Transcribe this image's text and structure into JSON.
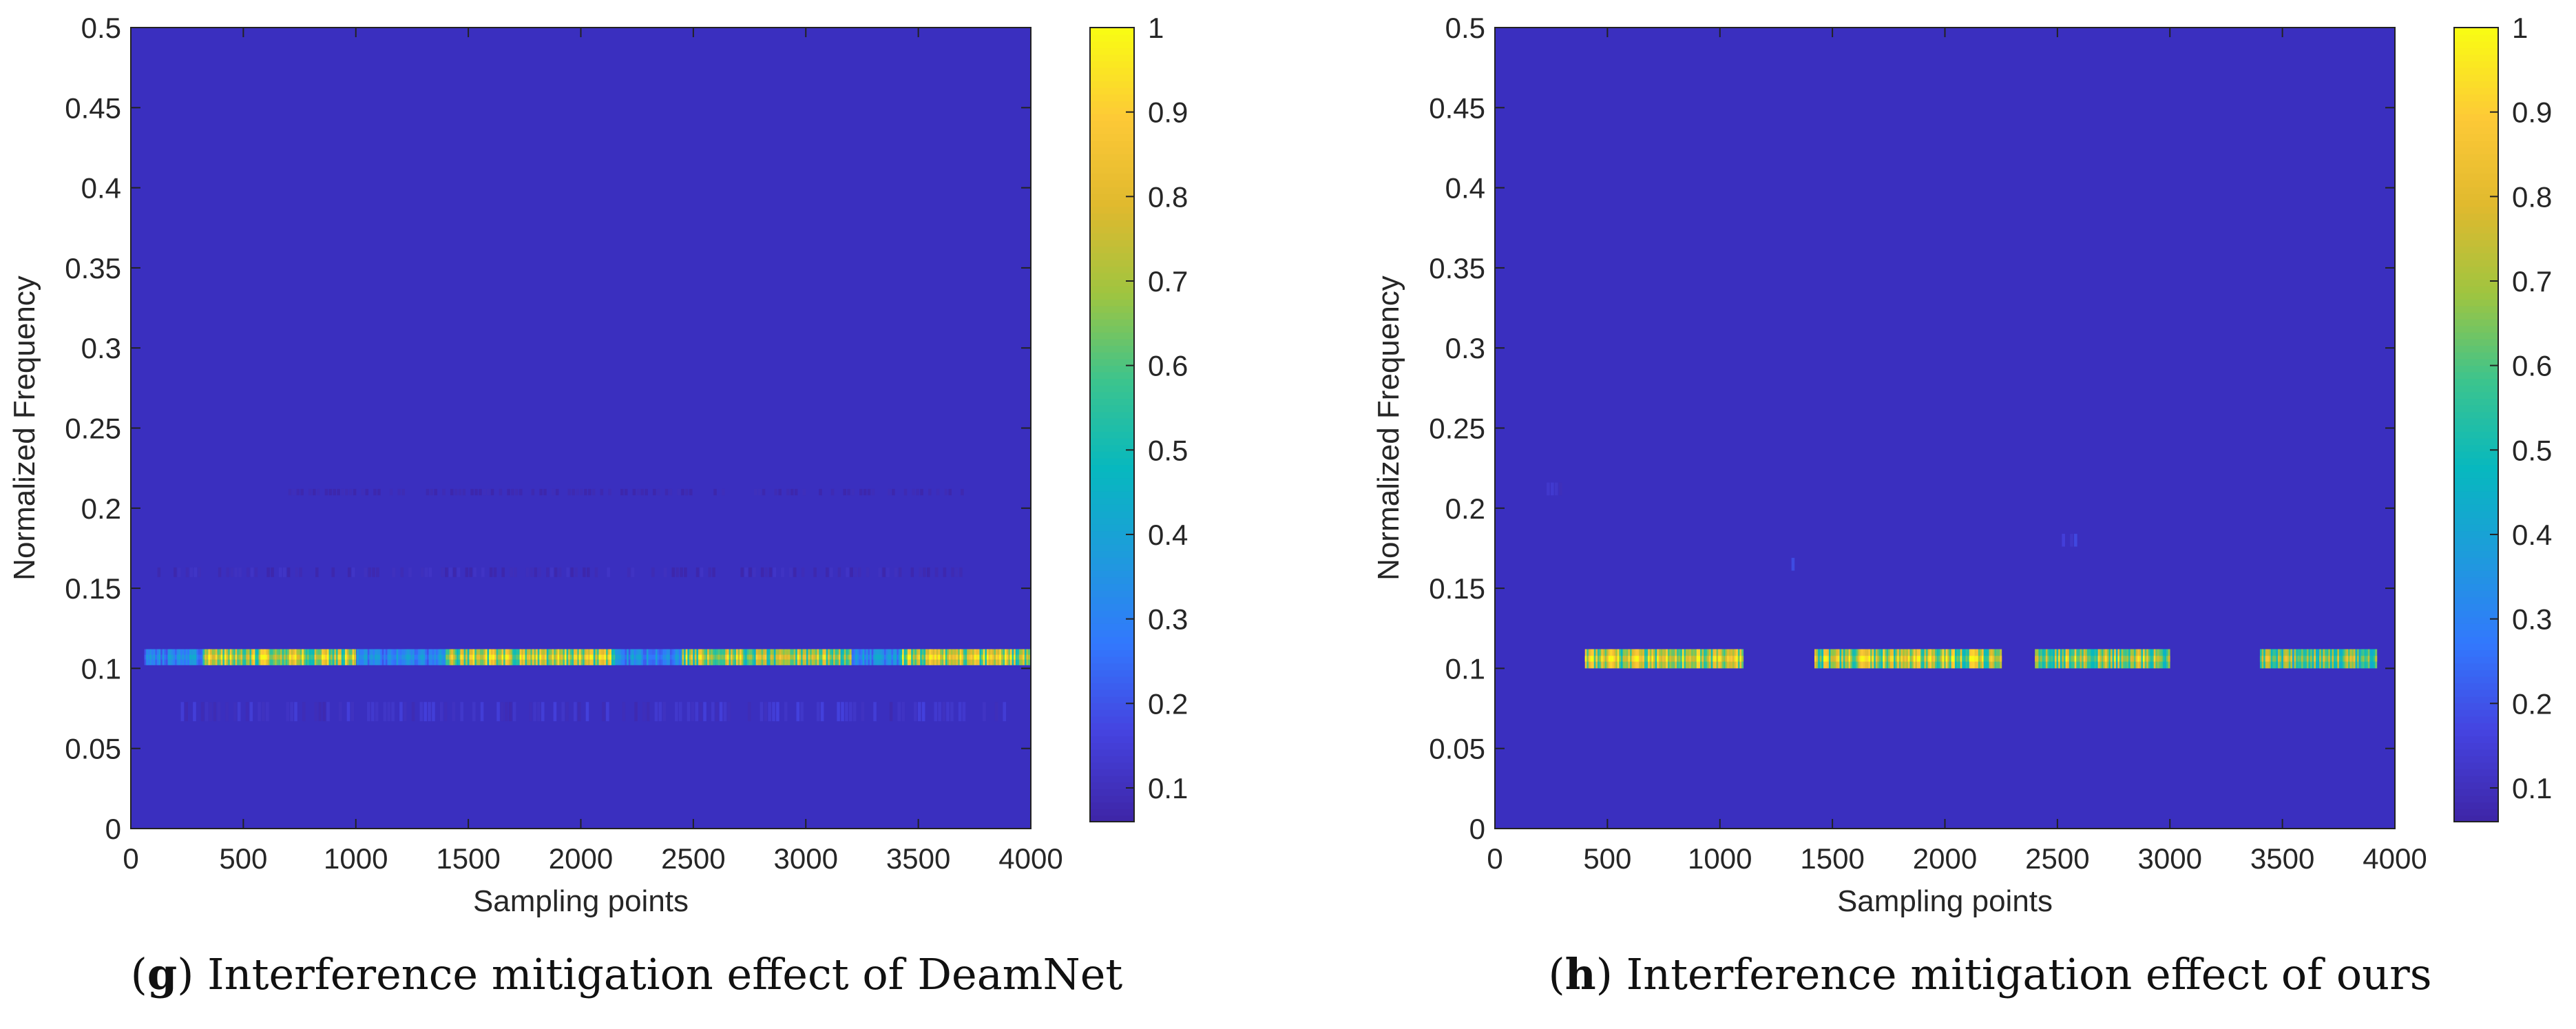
{
  "colors": {
    "background": "#3a2fbf",
    "axis": "#222222",
    "colormap": [
      "#3e26a8",
      "#4543e0",
      "#3278fd",
      "#1e9bdc",
      "#07b8bf",
      "#3bc48e",
      "#9fc540",
      "#e0b92e",
      "#fdc937",
      "#f9fb14"
    ]
  },
  "chart_data": [
    {
      "type": "heatmap",
      "panel": "g",
      "caption_letter": "g",
      "caption_text": "Interference mitigation effect of DeamNet",
      "xlabel": "Sampling points",
      "ylabel": "Normalized Frequency",
      "xlim": [
        0,
        4000
      ],
      "ylim": [
        0,
        0.5
      ],
      "xticks": [
        "0",
        "500",
        "1000",
        "1500",
        "2000",
        "2500",
        "3000",
        "3500",
        "4000"
      ],
      "yticks": [
        "0",
        "0.05",
        "0.1",
        "0.15",
        "0.2",
        "0.25",
        "0.3",
        "0.35",
        "0.4",
        "0.45",
        "0.5"
      ],
      "colorbar": {
        "range": [
          0.06,
          1
        ],
        "ticks": [
          "0.1",
          "0.2",
          "0.3",
          "0.4",
          "0.5",
          "0.6",
          "0.7",
          "0.8",
          "0.9",
          "1"
        ]
      },
      "band": {
        "freq": 0.107,
        "halfwidth": 0.005,
        "segments": [
          [
            60,
            3990,
            0.35
          ],
          [
            320,
            1000,
            0.85
          ],
          [
            1400,
            2150,
            0.85
          ],
          [
            2450,
            3200,
            0.8
          ],
          [
            3420,
            3990,
            0.85
          ]
        ]
      },
      "noise": [
        {
          "freq": 0.073,
          "halfwidth": 0.006,
          "segments": [
            [
              150,
              3900,
              0.14
            ]
          ]
        },
        {
          "freq": 0.16,
          "halfwidth": 0.003,
          "segments": [
            [
              100,
              3700,
              0.1
            ]
          ]
        },
        {
          "freq": 0.21,
          "halfwidth": 0.002,
          "segments": [
            [
              700,
              3700,
              0.08
            ]
          ]
        }
      ]
    },
    {
      "type": "heatmap",
      "panel": "h",
      "caption_letter": "h",
      "caption_text": "Interference mitigation effect of ours",
      "xlabel": "Sampling points",
      "ylabel": "Normalized Frequency",
      "xlim": [
        0,
        4000
      ],
      "ylim": [
        0,
        0.5
      ],
      "xticks": [
        "0",
        "500",
        "1000",
        "1500",
        "2000",
        "2500",
        "3000",
        "3500",
        "4000"
      ],
      "yticks": [
        "0",
        "0.05",
        "0.1",
        "0.15",
        "0.2",
        "0.25",
        "0.3",
        "0.35",
        "0.4",
        "0.45",
        "0.5"
      ],
      "colorbar": {
        "range": [
          0.06,
          1
        ],
        "ticks": [
          "0.1",
          "0.2",
          "0.3",
          "0.4",
          "0.5",
          "0.6",
          "0.7",
          "0.8",
          "0.9",
          "1"
        ]
      },
      "band": {
        "freq": 0.106,
        "halfwidth": 0.006,
        "segments": [
          [
            400,
            1100,
            0.85
          ],
          [
            1420,
            2250,
            0.85
          ],
          [
            2400,
            3000,
            0.8
          ],
          [
            3400,
            3920,
            0.7
          ]
        ]
      },
      "noise": [
        {
          "freq": 0.165,
          "halfwidth": 0.004,
          "segments": [
            [
              1300,
              1360,
              0.2
            ]
          ]
        },
        {
          "freq": 0.18,
          "halfwidth": 0.004,
          "segments": [
            [
              2520,
              2580,
              0.2
            ]
          ]
        },
        {
          "freq": 0.212,
          "halfwidth": 0.004,
          "segments": [
            [
              230,
              290,
              0.12
            ]
          ]
        }
      ]
    }
  ]
}
